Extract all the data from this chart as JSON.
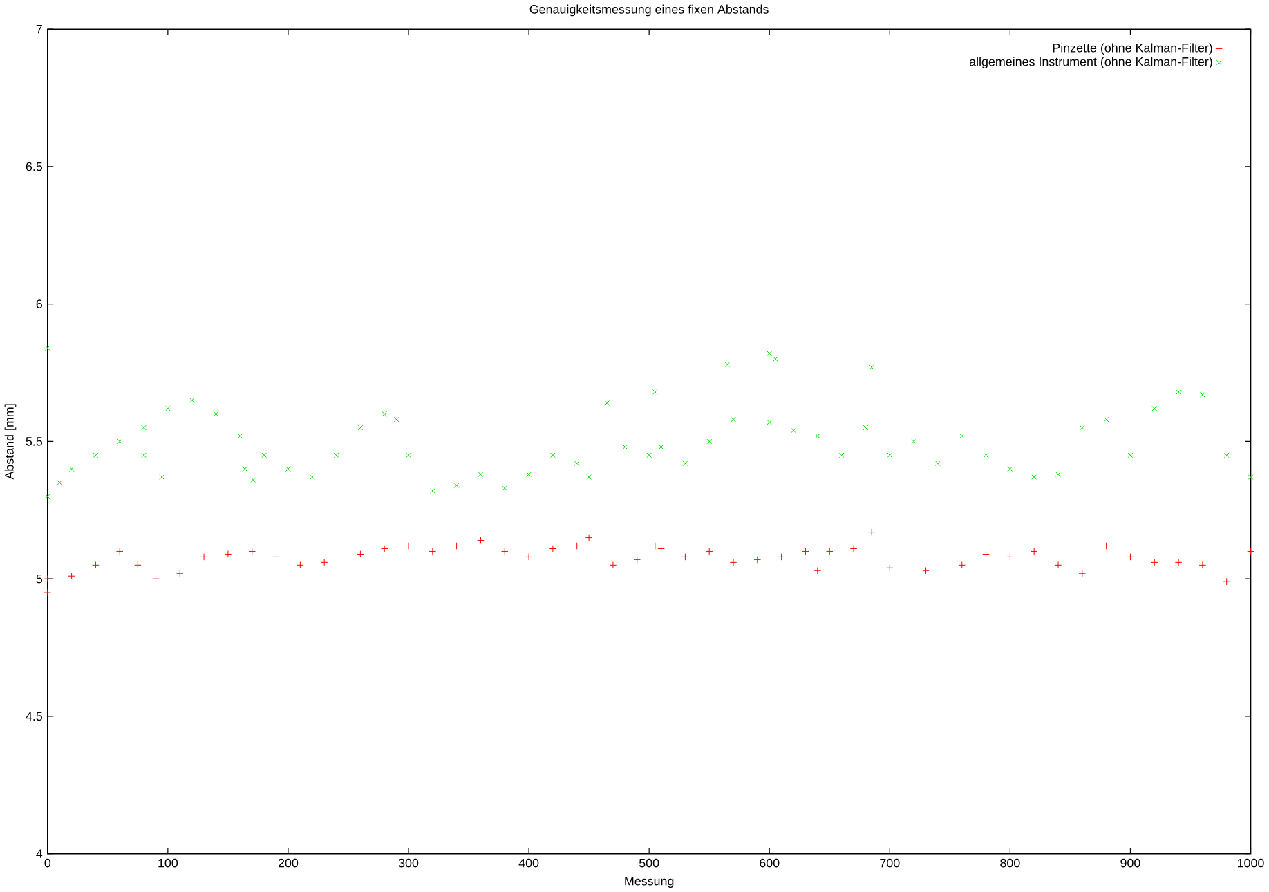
{
  "chart_data": {
    "type": "scatter",
    "title": "Genauigkeitsmessung eines fixen Abstands",
    "xlabel": "Messung",
    "ylabel": "Abstand [mm]",
    "xlim": [
      0,
      1000
    ],
    "ylim": [
      4,
      7
    ],
    "xticks": [
      0,
      100,
      200,
      300,
      400,
      500,
      600,
      700,
      800,
      900,
      1000
    ],
    "yticks": [
      4,
      4.5,
      5,
      5.5,
      6,
      6.5,
      7
    ],
    "legend": "top right",
    "marker": "cross",
    "grid": false,
    "series": [
      {
        "name": "Pinzette (ohne Kalman-Filter)",
        "color": "#ff0000",
        "x": [
          0,
          0,
          20,
          40,
          60,
          75,
          90,
          110,
          130,
          150,
          170,
          190,
          210,
          230,
          260,
          280,
          300,
          320,
          340,
          360,
          380,
          400,
          420,
          440,
          450,
          470,
          490,
          505,
          510,
          530,
          550,
          570,
          590,
          610,
          630,
          640,
          650,
          670,
          685,
          700,
          730,
          760,
          780,
          800,
          820,
          840,
          860,
          880,
          900,
          920,
          940,
          960,
          980,
          1000
        ],
        "values": [
          5.0,
          4.95,
          5.01,
          5.05,
          5.1,
          5.05,
          5.0,
          5.02,
          5.08,
          5.09,
          5.1,
          5.08,
          5.05,
          5.06,
          5.09,
          5.11,
          5.12,
          5.1,
          5.12,
          5.14,
          5.1,
          5.08,
          5.11,
          5.12,
          5.15,
          5.05,
          5.07,
          5.12,
          5.11,
          5.08,
          5.1,
          5.06,
          5.07,
          5.08,
          5.1,
          5.03,
          5.1,
          5.11,
          5.17,
          5.04,
          5.03,
          5.05,
          5.09,
          5.08,
          5.1,
          5.05,
          5.02,
          5.12,
          5.08,
          5.06,
          5.06,
          5.05,
          4.99,
          5.1
        ]
      },
      {
        "name": "allgemeines Instrument (ohne Kalman-Filter)",
        "color": "#00e000",
        "x": [
          0,
          0,
          10,
          20,
          40,
          60,
          80,
          80,
          95,
          100,
          120,
          140,
          160,
          164,
          171,
          180,
          200,
          220,
          240,
          260,
          280,
          290,
          300,
          320,
          340,
          360,
          380,
          400,
          420,
          440,
          450,
          465,
          480,
          500,
          505,
          510,
          530,
          550,
          565,
          570,
          600,
          600,
          605,
          620,
          640,
          660,
          680,
          685,
          700,
          720,
          740,
          760,
          780,
          800,
          820,
          840,
          860,
          880,
          900,
          920,
          940,
          960,
          980,
          1000
        ],
        "values": [
          5.84,
          5.3,
          5.35,
          5.4,
          5.45,
          5.5,
          5.55,
          5.45,
          5.37,
          5.62,
          5.65,
          5.6,
          5.52,
          5.4,
          5.36,
          5.45,
          5.4,
          5.37,
          5.45,
          5.55,
          5.6,
          5.58,
          5.45,
          5.32,
          5.34,
          5.38,
          5.33,
          5.38,
          5.45,
          5.42,
          5.37,
          5.64,
          5.48,
          5.45,
          5.68,
          5.48,
          5.42,
          5.5,
          5.78,
          5.58,
          5.57,
          5.82,
          5.8,
          5.54,
          5.52,
          5.45,
          5.55,
          5.77,
          5.45,
          5.5,
          5.42,
          5.52,
          5.45,
          5.4,
          5.37,
          5.38,
          5.55,
          5.58,
          5.45,
          5.62,
          5.68,
          5.67,
          5.45,
          5.37
        ]
      }
    ]
  }
}
